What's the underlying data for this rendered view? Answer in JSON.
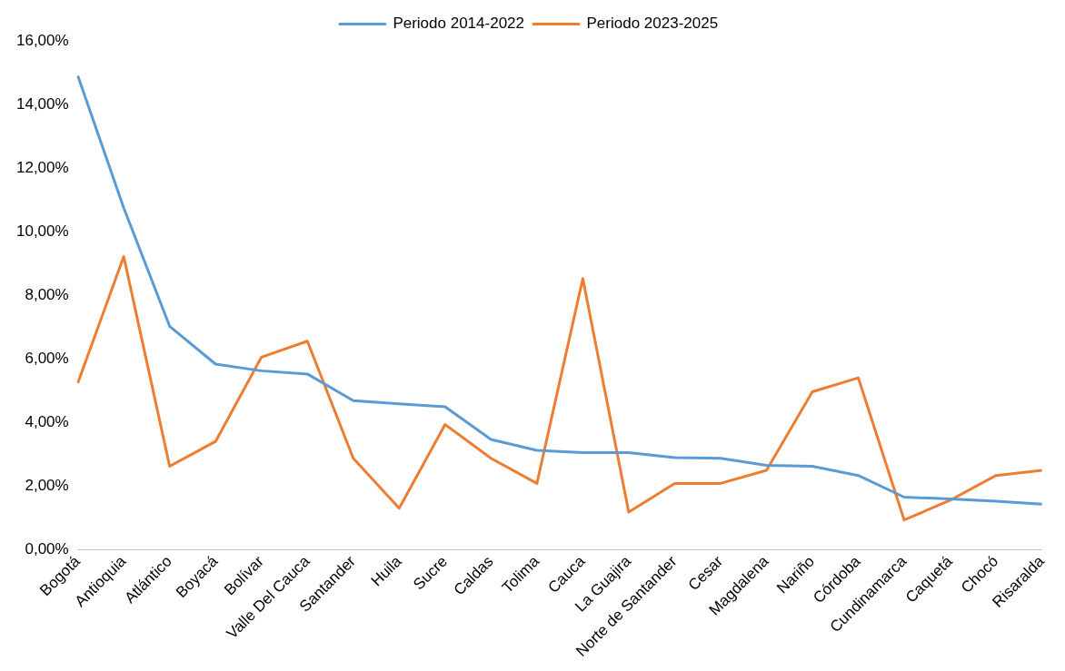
{
  "chart_data": {
    "type": "line",
    "categories": [
      "Bogotá",
      "Antioquia",
      "Atlántico",
      "Boyacá",
      "Bolívar",
      "Valle Del Cauca",
      "Santander",
      "Huila",
      "Sucre",
      "Caldas",
      "Tolima",
      "Cauca",
      "La Guajira",
      "Norte de Santander",
      "Cesar",
      "Magdalena",
      "Nariño",
      "Córdoba",
      "Cundinamarca",
      "Caquetá",
      "Chocó",
      "Risaralda"
    ],
    "series": [
      {
        "name": "Periodo 2014-2022",
        "color": "#5b9bd5",
        "values": [
          14.9,
          10.75,
          7.03,
          5.84,
          5.63,
          5.53,
          4.69,
          4.59,
          4.5,
          3.47,
          3.13,
          3.06,
          3.06,
          2.9,
          2.88,
          2.66,
          2.63,
          2.34,
          1.66,
          1.6,
          1.53,
          1.44
        ]
      },
      {
        "name": "Periodo 2023-2025",
        "color": "#ed7d31",
        "values": [
          5.25,
          9.22,
          2.63,
          3.41,
          6.06,
          6.56,
          2.88,
          1.31,
          3.94,
          2.88,
          2.09,
          8.53,
          1.19,
          2.09,
          2.09,
          2.5,
          4.97,
          5.41,
          0.94,
          1.56,
          2.34,
          2.5
        ]
      }
    ],
    "ylim": [
      0,
      16
    ],
    "yticks": [
      {
        "value": 0,
        "label": "0,00%"
      },
      {
        "value": 2,
        "label": "2,00%"
      },
      {
        "value": 4,
        "label": "4,00%"
      },
      {
        "value": 6,
        "label": "6,00%"
      },
      {
        "value": 8,
        "label": "8,00%"
      },
      {
        "value": 10,
        "label": "10,00%"
      },
      {
        "value": 12,
        "label": "12,00%"
      },
      {
        "value": 14,
        "label": "14,00%"
      },
      {
        "value": 16,
        "label": "16,00%"
      }
    ],
    "grid": false,
    "legend": "top",
    "marker": "none",
    "line_style": "solid"
  }
}
